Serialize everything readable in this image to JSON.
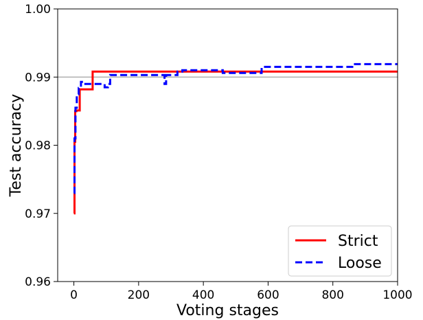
{
  "chart_data": {
    "type": "line",
    "title": "",
    "xlabel": "Voting stages",
    "ylabel": "Test accuracy",
    "xlim": [
      -50,
      1000
    ],
    "ylim": [
      0.96,
      1.0
    ],
    "xticks": [
      0,
      200,
      400,
      600,
      800,
      1000
    ],
    "xtick_labels": [
      "0",
      "200",
      "400",
      "600",
      "800",
      "1000"
    ],
    "yticks": [
      0.96,
      0.97,
      0.98,
      0.99,
      1.0
    ],
    "ytick_labels": [
      "0.96",
      "0.97",
      "0.98",
      "0.99",
      "1.00"
    ],
    "grid": false,
    "legend_position": "bottom-right",
    "reference_line": {
      "y": 0.99,
      "color": "#b0b0b0"
    },
    "series": [
      {
        "name": "Strict",
        "color": "#ff0000",
        "style": "solid",
        "x": [
          0,
          2,
          2,
          4,
          4,
          8,
          8,
          18,
          18,
          24,
          24,
          58,
          58,
          1000
        ],
        "y": [
          0.97,
          0.97,
          0.9805,
          0.9805,
          0.985,
          0.985,
          0.9851,
          0.9851,
          0.9882,
          0.9882,
          0.9882,
          0.9882,
          0.9908,
          0.9908
        ]
      },
      {
        "name": "Loose",
        "color": "#0000ff",
        "style": "dashed",
        "x": [
          0,
          2,
          2,
          5,
          5,
          9,
          9,
          15,
          15,
          22,
          22,
          32,
          32,
          95,
          95,
          105,
          105,
          112,
          112,
          280,
          280,
          285,
          285,
          320,
          320,
          335,
          335,
          460,
          460,
          580,
          580,
          860,
          860,
          1000
        ],
        "y": [
          0.973,
          0.973,
          0.981,
          0.981,
          0.9855,
          0.9855,
          0.9875,
          0.9875,
          0.9884,
          0.9884,
          0.9893,
          0.9893,
          0.989,
          0.989,
          0.9885,
          0.9885,
          0.989,
          0.989,
          0.9903,
          0.9903,
          0.989,
          0.989,
          0.9903,
          0.9903,
          0.9908,
          0.9908,
          0.991,
          0.991,
          0.9906,
          0.9906,
          0.9915,
          0.9915,
          0.9919,
          0.9919
        ]
      }
    ]
  }
}
